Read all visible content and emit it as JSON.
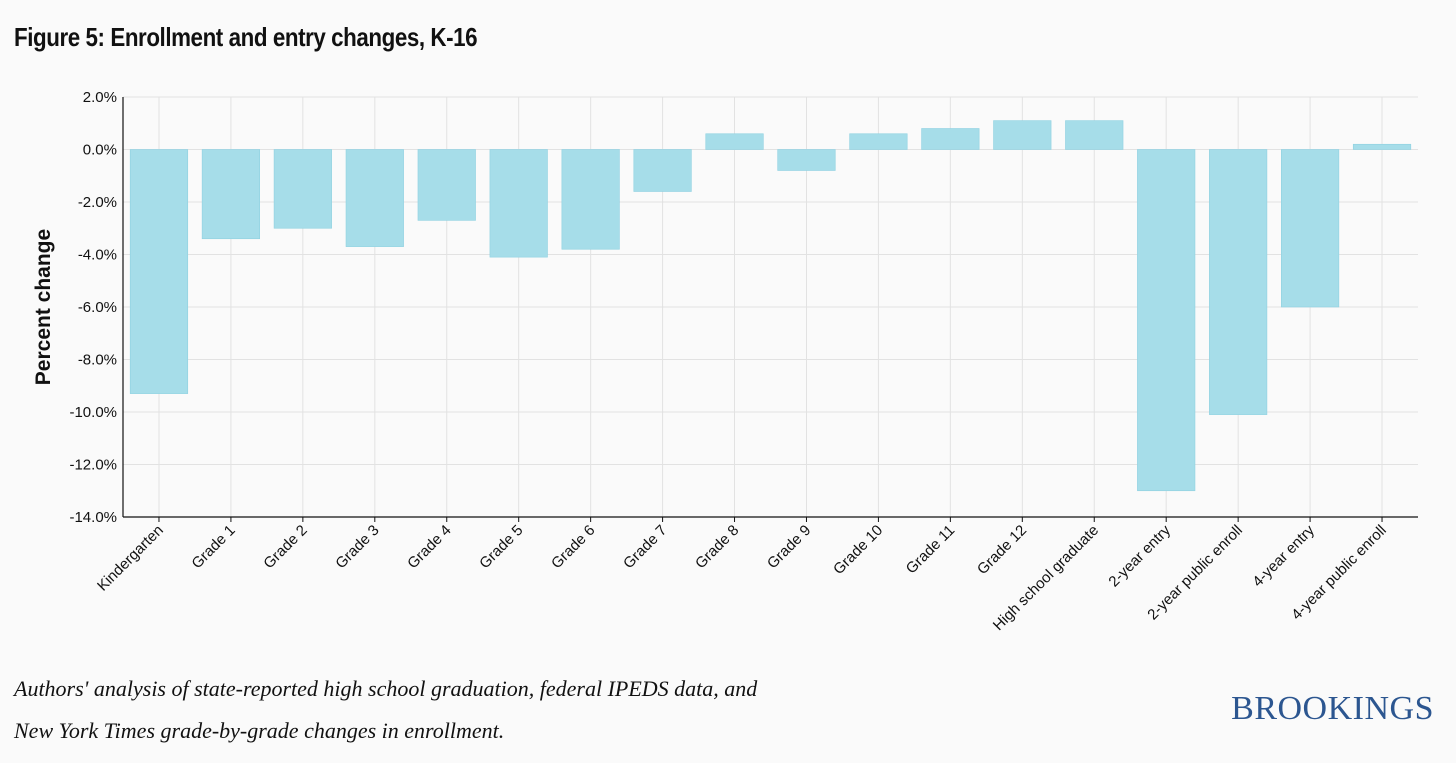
{
  "title": "Figure 5: Enrollment and entry changes, K-16",
  "source_lines": [
    "Authors' analysis of state-reported high school graduation, federal IPEDS data, and",
    "New York Times grade-by-grade changes in enrollment."
  ],
  "logo_text": "BROOKINGS",
  "colors": {
    "bar": "#a6dde9",
    "grid": "#e2e2e2",
    "axis": "#111111",
    "logo": "#2c5690"
  },
  "chart_data": {
    "type": "bar",
    "ylabel": "Percent change",
    "xlabel": "",
    "ylim": [
      -14,
      2
    ],
    "yticks": [
      2,
      0,
      -2,
      -4,
      -6,
      -8,
      -10,
      -12,
      -14
    ],
    "ytick_labels": [
      "2.0%",
      "0.0%",
      "-2.0%",
      "-4.0%",
      "-6.0%",
      "-8.0%",
      "-10.0%",
      "-12.0%",
      "-14.0%"
    ],
    "grid": true,
    "categories": [
      "Kindergarten",
      "Grade 1",
      "Grade 2",
      "Grade 3",
      "Grade 4",
      "Grade 5",
      "Grade 6",
      "Grade 7",
      "Grade 8",
      "Grade 9",
      "Grade 10",
      "Grade 11",
      "Grade 12",
      "High school graduate",
      "2-year entry",
      "2-year public enroll",
      "4-year entry",
      "4-year public enroll"
    ],
    "values": [
      -9.3,
      -3.4,
      -3.0,
      -3.7,
      -2.7,
      -4.1,
      -3.8,
      -1.6,
      0.6,
      -0.8,
      0.6,
      0.8,
      1.1,
      1.1,
      -13.0,
      -10.1,
      -6.0,
      0.2
    ]
  }
}
